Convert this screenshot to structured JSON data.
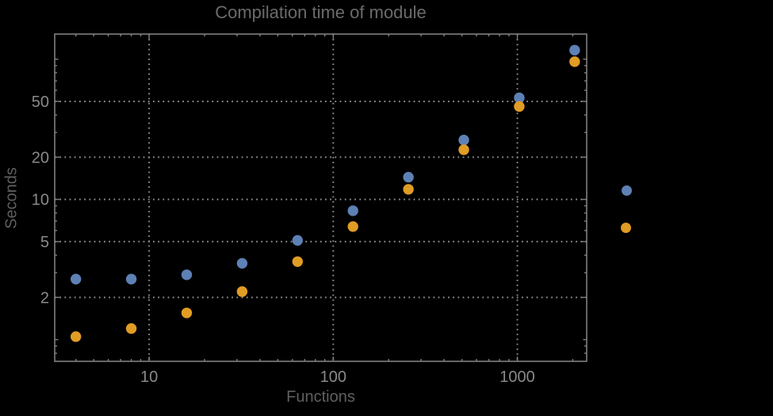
{
  "chart_data": {
    "type": "scatter",
    "title": "Compilation time of module",
    "xlabel": "Functions",
    "ylabel": "Seconds",
    "xscale": "log",
    "yscale": "log",
    "xlim": [
      3.07,
      2380
    ],
    "ylim": [
      0.7,
      151
    ],
    "grid": "dotted-at-labeled-ticks",
    "x": [
      4,
      8,
      16,
      32,
      64,
      128,
      256,
      512,
      1024,
      2048
    ],
    "series": [
      {
        "id": "series-1",
        "color": "#5e81b5",
        "values": [
          2.7,
          2.7,
          2.9,
          3.5,
          5.1,
          8.3,
          14.4,
          26.5,
          53,
          116
        ]
      },
      {
        "id": "series-2",
        "color": "#e19c24",
        "values": [
          1.05,
          1.2,
          1.55,
          2.2,
          3.6,
          6.4,
          11.8,
          22.6,
          46,
          96
        ]
      }
    ],
    "x_ticks": {
      "major": [
        10,
        100,
        1000
      ],
      "labels": [
        "10",
        "100",
        "1000"
      ],
      "minor": [
        4,
        5,
        6,
        7,
        8,
        9,
        20,
        30,
        40,
        50,
        60,
        70,
        80,
        90,
        200,
        300,
        400,
        500,
        600,
        700,
        800,
        900,
        2000
      ]
    },
    "y_ticks": {
      "major": [
        2,
        5,
        10,
        20,
        50
      ],
      "labels": [
        "2",
        "5",
        "10",
        "20",
        "50"
      ],
      "mid": [
        1,
        100
      ],
      "minor": [
        0.8,
        0.9,
        3,
        4,
        6,
        7,
        8,
        9,
        30,
        40,
        60,
        70,
        80,
        90
      ]
    },
    "x_gridlines": [
      10,
      100,
      1000
    ],
    "y_gridlines": [
      2,
      5,
      10,
      20,
      50
    ],
    "legend": {
      "position": "right-outside",
      "markers": [
        {
          "series": "series-1",
          "color": "#5e81b5"
        },
        {
          "series": "series-2",
          "color": "#e19c24"
        }
      ]
    }
  },
  "colors": {
    "background": "#000000",
    "frame": "#808080",
    "grid": "#8a8a8a",
    "tick": "#808080",
    "tick_label": "#8a8a8a",
    "title": "#6b6b6b",
    "axis_label": "#5f5f5f"
  }
}
